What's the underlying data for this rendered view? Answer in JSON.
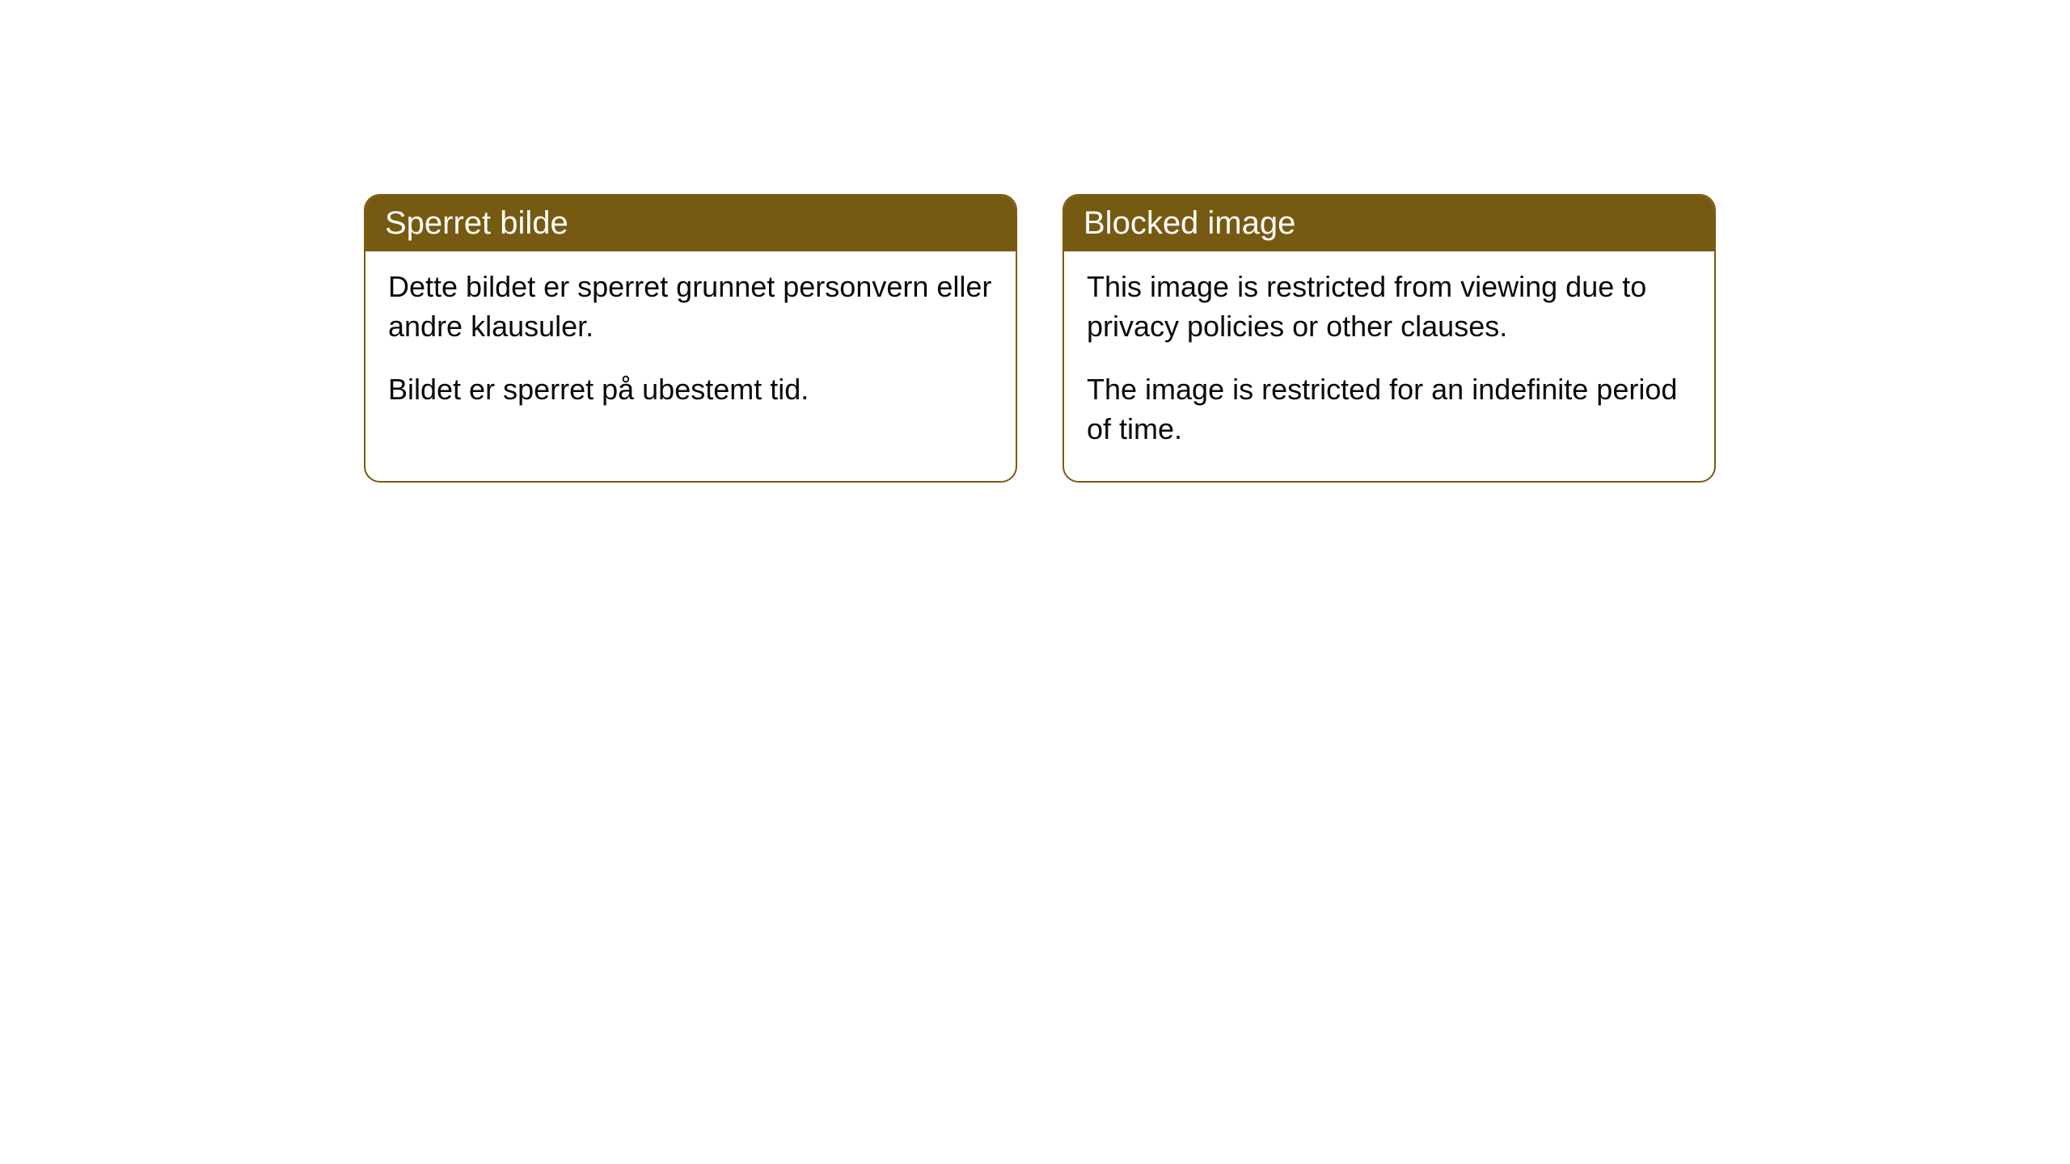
{
  "cards": [
    {
      "title": "Sperret bilde",
      "paragraph1": "Dette bildet er sperret grunnet personvern eller andre klausuler.",
      "paragraph2": "Bildet er sperret på ubestemt tid."
    },
    {
      "title": "Blocked image",
      "paragraph1": "This image is restricted from viewing due to privacy policies or other clauses.",
      "paragraph2": "The image is restricted for an indefinite period of time."
    }
  ],
  "style": {
    "header_bg_color": "#775a12",
    "header_text_color": "#ffffff",
    "border_color": "#7a5c0e",
    "body_bg_color": "#ffffff",
    "body_text_color": "#0a0a0a",
    "border_radius": 20,
    "header_fontsize": 40,
    "body_fontsize": 36
  }
}
